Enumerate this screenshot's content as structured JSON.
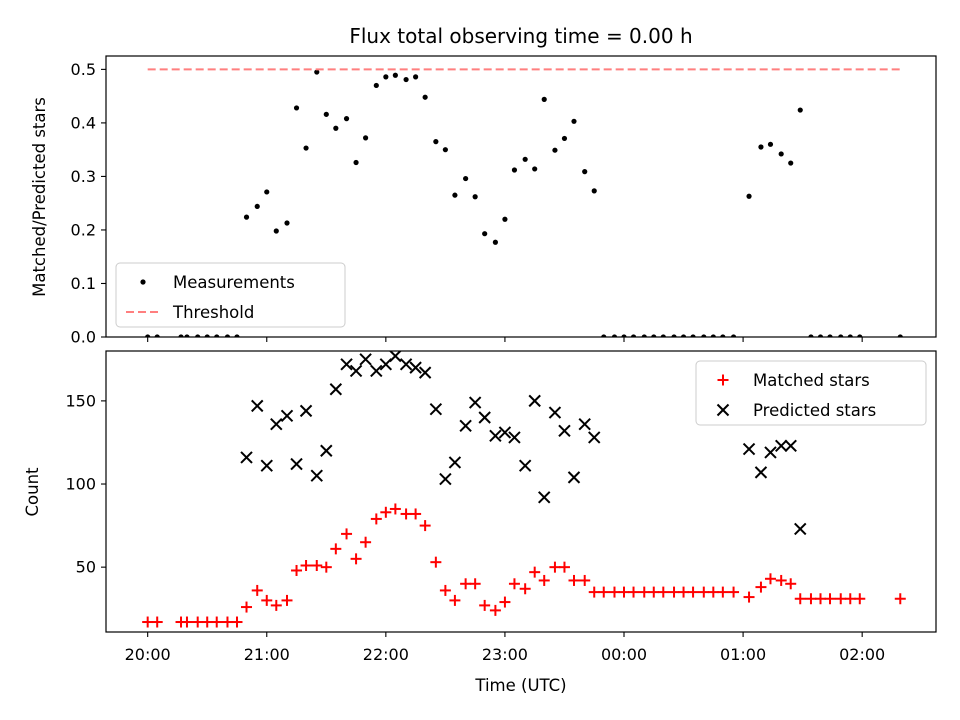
{
  "figure": {
    "title": "Flux total observing time = 0.00 h",
    "xlabel": "Time (UTC)"
  },
  "chart_data": [
    {
      "type": "scatter",
      "panel": "top",
      "title": "Flux total observing time = 0.00 h",
      "ylabel": "Matched/Predicted stars",
      "xlabel": "",
      "x_units": "hours after 20:00 UTC",
      "xlim": [
        -0.35,
        6.62
      ],
      "ylim": [
        0.0,
        0.525
      ],
      "yticks": [
        "0.0",
        "0.1",
        "0.2",
        "0.3",
        "0.4",
        "0.5"
      ],
      "ytick_values": [
        0.0,
        0.1,
        0.2,
        0.3,
        0.4,
        0.5
      ],
      "grid": false,
      "legend_position": "lower-left",
      "series": [
        {
          "name": "Measurements",
          "color": "#000000",
          "marker": "dot",
          "points": [
            [
              0.0,
              0.0
            ],
            [
              0.08,
              0.0
            ],
            [
              0.28,
              0.0
            ],
            [
              0.33,
              0.0
            ],
            [
              0.42,
              0.0
            ],
            [
              0.5,
              0.0
            ],
            [
              0.58,
              0.0
            ],
            [
              0.67,
              0.0
            ],
            [
              0.75,
              0.0
            ],
            [
              0.83,
              0.224
            ],
            [
              0.92,
              0.244
            ],
            [
              1.0,
              0.271
            ],
            [
              1.08,
              0.198
            ],
            [
              1.17,
              0.213
            ],
            [
              1.25,
              0.428
            ],
            [
              1.33,
              0.353
            ],
            [
              1.42,
              0.495
            ],
            [
              1.5,
              0.416
            ],
            [
              1.58,
              0.39
            ],
            [
              1.67,
              0.408
            ],
            [
              1.75,
              0.326
            ],
            [
              1.83,
              0.372
            ],
            [
              1.92,
              0.47
            ],
            [
              2.0,
              0.486
            ],
            [
              2.08,
              0.489
            ],
            [
              2.17,
              0.481
            ],
            [
              2.25,
              0.486
            ],
            [
              2.33,
              0.448
            ],
            [
              2.42,
              0.365
            ],
            [
              2.5,
              0.35
            ],
            [
              2.58,
              0.265
            ],
            [
              2.67,
              0.296
            ],
            [
              2.75,
              0.262
            ],
            [
              2.83,
              0.193
            ],
            [
              2.92,
              0.177
            ],
            [
              3.0,
              0.22
            ],
            [
              3.08,
              0.312
            ],
            [
              3.17,
              0.332
            ],
            [
              3.25,
              0.314
            ],
            [
              3.33,
              0.444
            ],
            [
              3.42,
              0.349
            ],
            [
              3.5,
              0.371
            ],
            [
              3.58,
              0.403
            ],
            [
              3.67,
              0.309
            ],
            [
              3.75,
              0.273
            ],
            [
              3.83,
              0.0
            ],
            [
              3.92,
              0.0
            ],
            [
              4.0,
              0.0
            ],
            [
              4.08,
              0.0
            ],
            [
              4.17,
              0.0
            ],
            [
              4.25,
              0.0
            ],
            [
              4.33,
              0.0
            ],
            [
              4.42,
              0.0
            ],
            [
              4.5,
              0.0
            ],
            [
              4.58,
              0.0
            ],
            [
              4.67,
              0.0
            ],
            [
              4.75,
              0.0
            ],
            [
              4.83,
              0.0
            ],
            [
              4.92,
              0.0
            ],
            [
              5.05,
              0.263
            ],
            [
              5.15,
              0.355
            ],
            [
              5.23,
              0.36
            ],
            [
              5.32,
              0.342
            ],
            [
              5.4,
              0.325
            ],
            [
              5.48,
              0.424
            ],
            [
              5.57,
              0.0
            ],
            [
              5.65,
              0.0
            ],
            [
              5.73,
              0.0
            ],
            [
              5.82,
              0.0
            ],
            [
              5.9,
              0.0
            ],
            [
              5.98,
              0.0
            ],
            [
              6.32,
              0.0
            ]
          ]
        },
        {
          "name": "Threshold",
          "color": "#ff7f7f",
          "style": "dashed",
          "points": [
            [
              0.0,
              0.5
            ],
            [
              6.32,
              0.5
            ]
          ]
        }
      ]
    },
    {
      "type": "scatter",
      "panel": "bottom",
      "ylabel": "Count",
      "xlabel": "Time (UTC)",
      "x_units": "hours after 20:00 UTC",
      "xlim": [
        -0.35,
        6.62
      ],
      "ylim": [
        11,
        180
      ],
      "yticks": [
        "50",
        "100",
        "150"
      ],
      "ytick_values": [
        50,
        100,
        150
      ],
      "xticks": [
        "20:00",
        "21:00",
        "22:00",
        "23:00",
        "00:00",
        "01:00",
        "02:00"
      ],
      "xtick_values": [
        0,
        1,
        2,
        3,
        4,
        5,
        6
      ],
      "grid": false,
      "legend_position": "upper-right",
      "series": [
        {
          "name": "Matched stars",
          "color": "#ff0000",
          "marker": "plus",
          "points": [
            [
              0.0,
              17
            ],
            [
              0.08,
              17
            ],
            [
              0.28,
              17
            ],
            [
              0.33,
              17
            ],
            [
              0.42,
              17
            ],
            [
              0.5,
              17
            ],
            [
              0.58,
              17
            ],
            [
              0.67,
              17
            ],
            [
              0.75,
              17
            ],
            [
              0.83,
              26
            ],
            [
              0.92,
              36
            ],
            [
              1.0,
              30
            ],
            [
              1.08,
              27
            ],
            [
              1.17,
              30
            ],
            [
              1.25,
              48
            ],
            [
              1.33,
              51
            ],
            [
              1.42,
              51
            ],
            [
              1.5,
              50
            ],
            [
              1.58,
              61
            ],
            [
              1.67,
              70
            ],
            [
              1.75,
              55
            ],
            [
              1.83,
              65
            ],
            [
              1.92,
              79
            ],
            [
              2.0,
              83
            ],
            [
              2.08,
              85
            ],
            [
              2.17,
              82
            ],
            [
              2.25,
              82
            ],
            [
              2.33,
              75
            ],
            [
              2.42,
              53
            ],
            [
              2.5,
              36
            ],
            [
              2.58,
              30
            ],
            [
              2.67,
              40
            ],
            [
              2.75,
              40
            ],
            [
              2.83,
              27
            ],
            [
              2.92,
              24
            ],
            [
              3.0,
              29
            ],
            [
              3.08,
              40
            ],
            [
              3.17,
              37
            ],
            [
              3.25,
              47
            ],
            [
              3.33,
              42
            ],
            [
              3.42,
              50
            ],
            [
              3.5,
              50
            ],
            [
              3.58,
              42
            ],
            [
              3.67,
              42
            ],
            [
              3.75,
              35
            ],
            [
              3.83,
              35
            ],
            [
              3.92,
              35
            ],
            [
              4.0,
              35
            ],
            [
              4.08,
              35
            ],
            [
              4.17,
              35
            ],
            [
              4.25,
              35
            ],
            [
              4.33,
              35
            ],
            [
              4.42,
              35
            ],
            [
              4.5,
              35
            ],
            [
              4.58,
              35
            ],
            [
              4.67,
              35
            ],
            [
              4.75,
              35
            ],
            [
              4.83,
              35
            ],
            [
              4.92,
              35
            ],
            [
              5.05,
              32
            ],
            [
              5.15,
              38
            ],
            [
              5.23,
              43
            ],
            [
              5.32,
              42
            ],
            [
              5.4,
              40
            ],
            [
              5.48,
              31
            ],
            [
              5.57,
              31
            ],
            [
              5.65,
              31
            ],
            [
              5.73,
              31
            ],
            [
              5.82,
              31
            ],
            [
              5.9,
              31
            ],
            [
              5.98,
              31
            ],
            [
              6.32,
              31
            ]
          ]
        },
        {
          "name": "Predicted stars",
          "color": "#000000",
          "marker": "x",
          "points": [
            [
              0.83,
              116
            ],
            [
              0.92,
              147
            ],
            [
              1.0,
              111
            ],
            [
              1.08,
              136
            ],
            [
              1.17,
              141
            ],
            [
              1.25,
              112
            ],
            [
              1.33,
              144
            ],
            [
              1.42,
              105
            ],
            [
              1.5,
              120
            ],
            [
              1.58,
              157
            ],
            [
              1.67,
              172
            ],
            [
              1.75,
              168
            ],
            [
              1.83,
              175
            ],
            [
              1.92,
              168
            ],
            [
              2.0,
              172
            ],
            [
              2.08,
              177
            ],
            [
              2.17,
              172
            ],
            [
              2.25,
              170
            ],
            [
              2.33,
              167
            ],
            [
              2.42,
              145
            ],
            [
              2.5,
              103
            ],
            [
              2.58,
              113
            ],
            [
              2.67,
              135
            ],
            [
              2.75,
              149
            ],
            [
              2.83,
              140
            ],
            [
              2.92,
              129
            ],
            [
              3.0,
              131
            ],
            [
              3.08,
              128
            ],
            [
              3.17,
              111
            ],
            [
              3.25,
              150
            ],
            [
              3.33,
              92
            ],
            [
              3.42,
              143
            ],
            [
              3.5,
              132
            ],
            [
              3.58,
              104
            ],
            [
              3.67,
              136
            ],
            [
              3.75,
              128
            ],
            [
              5.05,
              121
            ],
            [
              5.15,
              107
            ],
            [
              5.23,
              119
            ],
            [
              5.32,
              123
            ],
            [
              5.4,
              123
            ],
            [
              5.48,
              73
            ]
          ]
        }
      ]
    }
  ]
}
